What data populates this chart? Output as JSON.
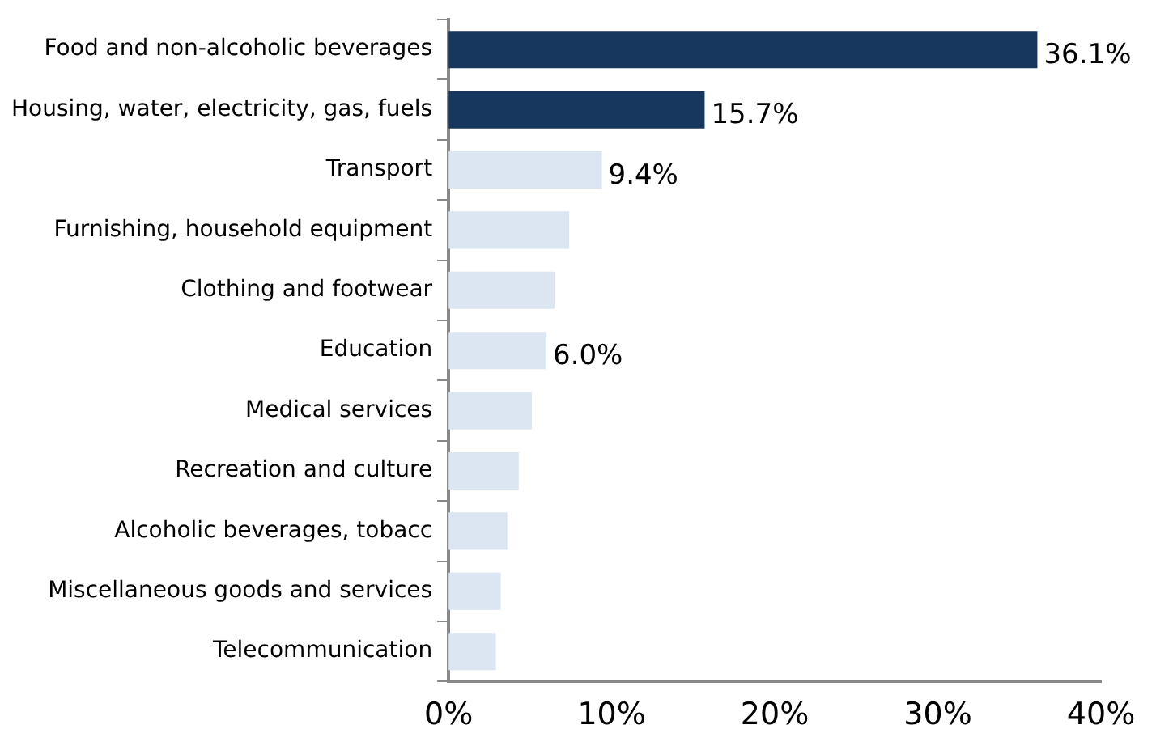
{
  "chart_data": {
    "type": "bar",
    "orientation": "horizontal",
    "categories": [
      "Food and non-alcoholic beverages",
      "Housing, water, electricity, gas, fuels",
      "Transport",
      "Furnishing, household equipment",
      "Clothing and footwear",
      "Education",
      "Medical services",
      "Recreation and culture",
      "Alcoholic beverages, tobacc",
      "Miscellaneous goods and services",
      "Telecommunication"
    ],
    "values": [
      36.1,
      15.7,
      9.4,
      7.4,
      6.5,
      6.0,
      5.1,
      4.3,
      3.6,
      3.2,
      2.9
    ],
    "colors": [
      "#17375e",
      "#17375e",
      "#dce6f2",
      "#dce6f2",
      "#dce6f2",
      "#dce6f2",
      "#dce6f2",
      "#dce6f2",
      "#dce6f2",
      "#dce6f2",
      "#dce6f2"
    ],
    "value_labels": [
      "36.1%",
      "15.7%",
      "9.4%",
      null,
      null,
      "6.0%",
      null,
      null,
      null,
      null,
      null
    ],
    "xlim": [
      0,
      40
    ],
    "xticks": [
      {
        "value": 0,
        "label": "0%"
      },
      {
        "value": 10,
        "label": "10%"
      },
      {
        "value": 20,
        "label": "20%"
      },
      {
        "value": 30,
        "label": "30%"
      },
      {
        "value": 40,
        "label": "40%"
      }
    ],
    "grid": false,
    "legend": false
  }
}
